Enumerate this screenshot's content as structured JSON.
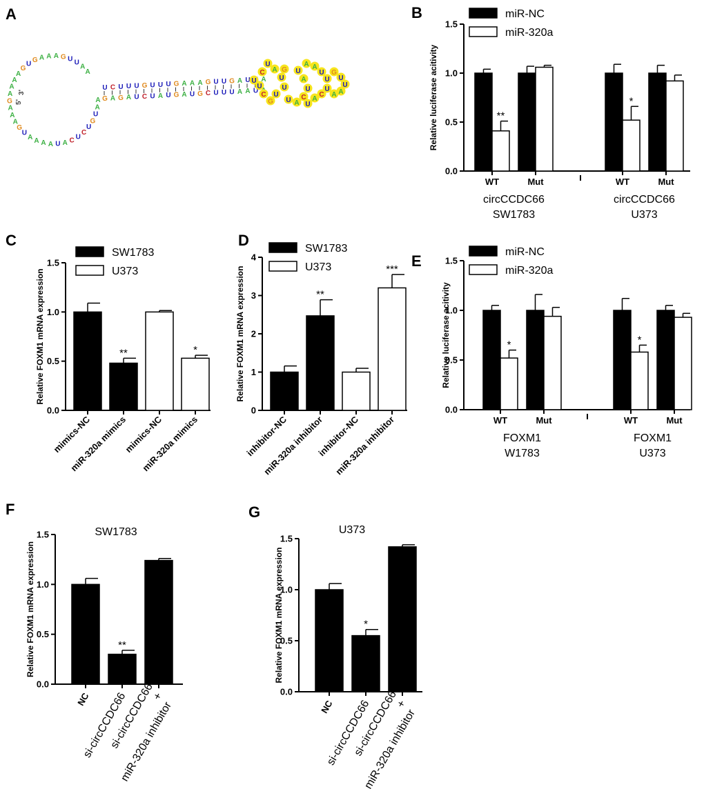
{
  "panels": {
    "A": {
      "letter": "A",
      "five_prime": "5'",
      "three_prime": "3'",
      "colors": {
        "A": "#3cb043",
        "U": "#1a1ab8",
        "G": "#e08a1e",
        "C": "#c0202a",
        "highlight": "#f7e51c"
      }
    }
  },
  "chart_data": [
    {
      "id": "B",
      "letter": "B",
      "type": "bar",
      "ylabel": "Relative luciferase acitivity",
      "ylim": [
        0,
        1.5
      ],
      "yticks": [
        "0.0",
        "0.5",
        "1.0",
        "1.5"
      ],
      "legend": [
        "miR-NC",
        "miR-320a"
      ],
      "legend_position": "top-left",
      "groups": [
        {
          "label_lines": [
            "circCCDC66",
            "SW1783"
          ],
          "bars": [
            {
              "cat": "WT",
              "values": [
                1.0,
                0.41
              ],
              "errors": [
                0.04,
                0.1
              ],
              "sig": [
                "",
                "**"
              ]
            },
            {
              "cat": "Mut",
              "values": [
                1.0,
                1.06
              ],
              "errors": [
                0.07,
                0.02
              ],
              "sig": [
                "",
                ""
              ]
            }
          ]
        },
        {
          "label_lines": [
            "circCCDC66",
            "U373"
          ],
          "bars": [
            {
              "cat": "WT",
              "values": [
                1.0,
                0.52
              ],
              "errors": [
                0.09,
                0.14
              ],
              "sig": [
                "",
                "*"
              ]
            },
            {
              "cat": "Mut",
              "values": [
                1.0,
                0.92
              ],
              "errors": [
                0.08,
                0.06
              ],
              "sig": [
                "",
                ""
              ]
            }
          ]
        }
      ]
    },
    {
      "id": "C",
      "letter": "C",
      "type": "bar",
      "ylabel": "Relative FOXM1 mRNA expression",
      "ylim": [
        0,
        1.5
      ],
      "yticks": [
        "0.0",
        "0.5",
        "1.0",
        "1.5"
      ],
      "legend": [
        "SW1783",
        "U373"
      ],
      "legend_position": "top-left",
      "bars": [
        {
          "label": "mimics-NC",
          "value": 1.0,
          "error": 0.09,
          "fill": "black",
          "sig": ""
        },
        {
          "label": "miR-320a mimics",
          "value": 0.48,
          "error": 0.05,
          "fill": "black",
          "sig": "**"
        },
        {
          "label": "mimics-NC",
          "value": 1.0,
          "error": 0.015,
          "fill": "white",
          "sig": ""
        },
        {
          "label": "miR-320a mimics",
          "value": 0.53,
          "error": 0.03,
          "fill": "white",
          "sig": "*"
        }
      ]
    },
    {
      "id": "D",
      "letter": "D",
      "type": "bar",
      "ylabel": "Relative FOXM1 mRNA expression",
      "ylim": [
        0,
        4
      ],
      "yticks": [
        "0",
        "1",
        "2",
        "3",
        "4"
      ],
      "legend": [
        "SW1783",
        "U373"
      ],
      "legend_position": "top-left",
      "bars": [
        {
          "label": "inhibitor-NC",
          "value": 1.0,
          "error": 0.16,
          "fill": "black",
          "sig": ""
        },
        {
          "label": "miR-320a inhibitor",
          "value": 2.47,
          "error": 0.42,
          "fill": "black",
          "sig": "**"
        },
        {
          "label": "inhibitor-NC",
          "value": 1.0,
          "error": 0.1,
          "fill": "white",
          "sig": ""
        },
        {
          "label": "miR-320a inhibitor",
          "value": 3.2,
          "error": 0.35,
          "fill": "white",
          "sig": "***"
        }
      ]
    },
    {
      "id": "E",
      "letter": "E",
      "type": "bar",
      "ylabel": "Relative luciferase acitivity",
      "ylim": [
        0,
        1.5
      ],
      "yticks": [
        "0.0",
        "0.5",
        "1.0",
        "1.5"
      ],
      "legend": [
        "miR-NC",
        "miR-320a"
      ],
      "legend_position": "top-left",
      "groups": [
        {
          "label_lines": [
            "FOXM1",
            "W1783"
          ],
          "bars": [
            {
              "cat": "WT",
              "values": [
                1.0,
                0.52
              ],
              "errors": [
                0.05,
                0.08
              ],
              "sig": [
                "",
                "*"
              ]
            },
            {
              "cat": "Mut",
              "values": [
                1.0,
                0.94
              ],
              "errors": [
                0.16,
                0.09
              ],
              "sig": [
                "",
                ""
              ]
            }
          ]
        },
        {
          "label_lines": [
            "FOXM1",
            "U373"
          ],
          "bars": [
            {
              "cat": "WT",
              "values": [
                1.0,
                0.58
              ],
              "errors": [
                0.12,
                0.07
              ],
              "sig": [
                "",
                "*"
              ]
            },
            {
              "cat": "Mut",
              "values": [
                1.0,
                0.93
              ],
              "errors": [
                0.05,
                0.04
              ],
              "sig": [
                "",
                ""
              ]
            }
          ]
        }
      ]
    },
    {
      "id": "F",
      "letter": "F",
      "type": "bar",
      "title": "SW1783",
      "ylabel": "Relative FOXM1 mRNA expression",
      "ylim": [
        0,
        1.5
      ],
      "yticks": [
        "0.0",
        "0.5",
        "1.0",
        "1.5"
      ],
      "bars": [
        {
          "label_lines": [
            "NC"
          ],
          "value": 1.0,
          "error": 0.06,
          "sig": ""
        },
        {
          "label_lines": [
            "si-circCCDC66"
          ],
          "value": 0.3,
          "error": 0.04,
          "sig": "**"
        },
        {
          "label_lines": [
            "si-circCCDC66",
            "+",
            "miR-320a inhibitor"
          ],
          "value": 1.24,
          "error": 0.02,
          "sig": ""
        }
      ]
    },
    {
      "id": "G",
      "letter": "G",
      "type": "bar",
      "title": "U373",
      "ylabel": "Relative FOXM1 mRNA expression",
      "ylim": [
        0,
        1.5
      ],
      "yticks": [
        "0.0",
        "0.5",
        "1.0",
        "1.5"
      ],
      "bars": [
        {
          "label_lines": [
            "NC"
          ],
          "value": 1.0,
          "error": 0.06,
          "sig": ""
        },
        {
          "label_lines": [
            "si-circCCDC66"
          ],
          "value": 0.55,
          "error": 0.06,
          "sig": "*"
        },
        {
          "label_lines": [
            "si-circCCDC66",
            "+",
            "miR-320a inhibitor"
          ],
          "value": 1.42,
          "error": 0.02,
          "sig": ""
        }
      ]
    }
  ]
}
